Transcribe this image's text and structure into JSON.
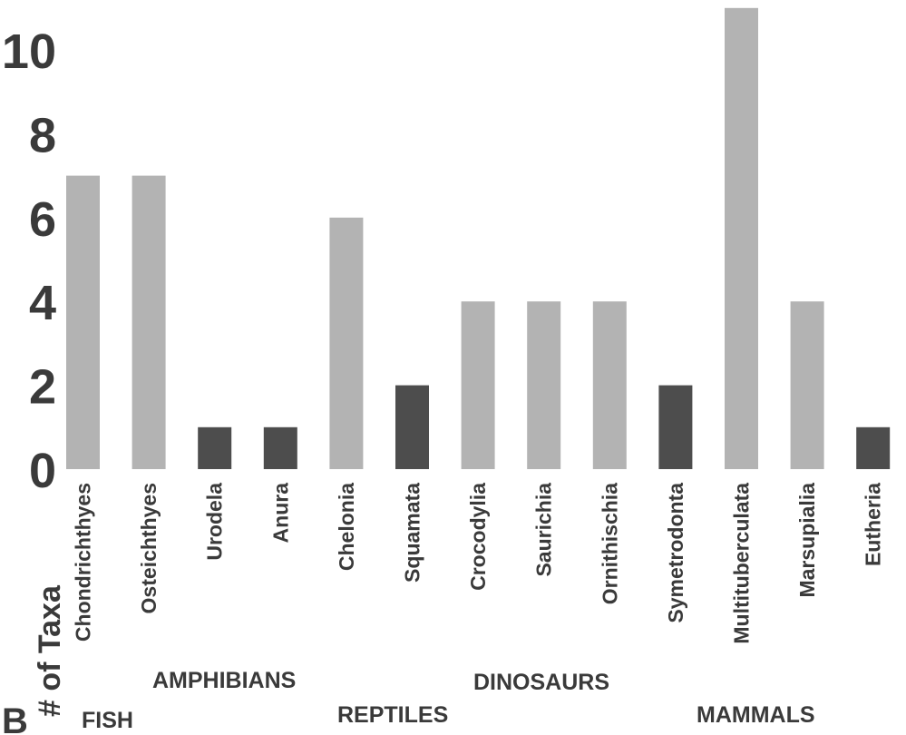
{
  "chart_data": {
    "type": "bar",
    "panel_label": "B",
    "ylabel": "# of Taxa",
    "ylim": [
      0,
      11
    ],
    "yticks": [
      0,
      2,
      4,
      6,
      8,
      10
    ],
    "categories": [
      "Chondrichthyes",
      "Osteichthyes",
      "Urodela",
      "Anura",
      "Chelonia",
      "Squamata",
      "Crocodylia",
      "Saurichia",
      "Ornithischia",
      "Symetrodonta",
      "Multituberculata",
      "Marsupialia",
      "Eutheria"
    ],
    "values": [
      7,
      7,
      1,
      1,
      6,
      2,
      4,
      4,
      4,
      2,
      11,
      4,
      1
    ],
    "bar_shade": [
      "light",
      "light",
      "dark",
      "dark",
      "light",
      "dark",
      "light",
      "light",
      "light",
      "dark",
      "light",
      "light",
      "dark"
    ],
    "colors": {
      "light": "#b3b3b3",
      "dark": "#4d4d4d"
    },
    "groups": [
      {
        "label": "FISH"
      },
      {
        "label": "AMPHIBIANS"
      },
      {
        "label": "REPTILES"
      },
      {
        "label": "DINOSAURS"
      },
      {
        "label": "MAMMALS"
      }
    ],
    "grid": false
  }
}
